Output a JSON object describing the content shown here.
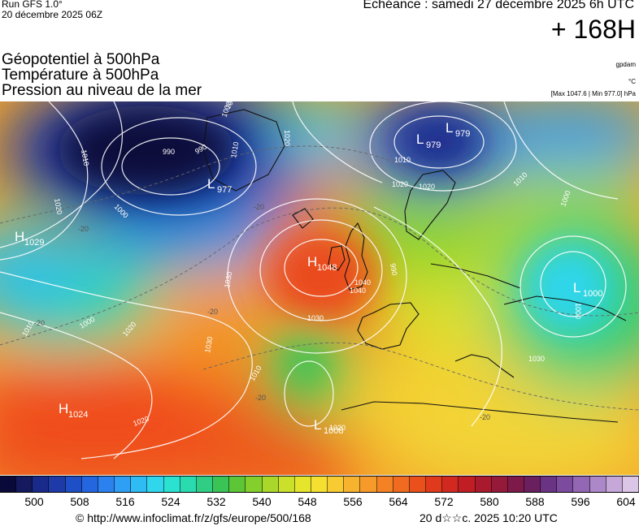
{
  "header": {
    "run_label": "Run GFS 1.0°",
    "run_date": "20 décembre 2025 06Z",
    "valid_time": "Échéance : samedi 27 décembre 2025 6h UTC",
    "lead_time": "+ 168H"
  },
  "parameters": [
    "Géopotentiel à 500hPa",
    "Température à 500hPa",
    "Pression au niveau de la mer"
  ],
  "units": {
    "geopotential": "gpdam",
    "temperature": "°C",
    "pressure_range": "[Max 1047.6 | Min 977.0] hPa"
  },
  "pressure_centers": [
    {
      "type": "H",
      "value": "1029",
      "name": "high-west-atlantic"
    },
    {
      "type": "H",
      "value": "1048",
      "name": "high-british-isles"
    },
    {
      "type": "H",
      "value": "1024",
      "name": "high-azores"
    },
    {
      "type": "L",
      "value": "977",
      "name": "low-greenland"
    },
    {
      "type": "L",
      "value": "979",
      "name": "low-norwegian-sea"
    },
    {
      "type": "L",
      "value": "979",
      "name": "low-barents-sea"
    },
    {
      "type": "L",
      "value": "1000",
      "name": "low-black-sea"
    },
    {
      "type": "L",
      "value": "1008",
      "name": "low-morocco"
    }
  ],
  "isobar_labels": [
    "1010",
    "1020",
    "990",
    "1000",
    "990",
    "1020",
    "1030",
    "1010",
    "1000",
    "1020",
    "1030",
    "1040",
    "1030",
    "1020",
    "1010",
    "1000",
    "1010",
    "1020",
    "1020",
    "1020",
    "1010",
    "1000",
    "990",
    "1000",
    "1010",
    "1030",
    "1000",
    "1040"
  ],
  "temperature_labels": [
    "-20",
    "-20",
    "-20",
    "-20",
    "-20",
    "-20"
  ],
  "colorbar": {
    "colors": [
      "#0a0a3a",
      "#151a5e",
      "#1a2a8a",
      "#1d3aa8",
      "#1f4fc6",
      "#2466df",
      "#2b82ef",
      "#2f9ff5",
      "#2fbcf5",
      "#2fd6ec",
      "#2be2d0",
      "#2adbb0",
      "#2fce84",
      "#3bc456",
      "#5cc637",
      "#84cf2c",
      "#aad82a",
      "#cbe02a",
      "#e5e52c",
      "#f5e031",
      "#f8cb32",
      "#f7b22e",
      "#f69a29",
      "#f48224",
      "#f06a1f",
      "#ea501c",
      "#e03a1c",
      "#d1281f",
      "#c01d24",
      "#aa1a2e",
      "#951a3a",
      "#7d1a4a",
      "#6a1f5f",
      "#6a3384",
      "#7d4b9e",
      "#9467b4",
      "#ad88c8",
      "#c6a8d8",
      "#dcc6e6"
    ],
    "labels": [
      "500",
      "508",
      "516",
      "524",
      "532",
      "540",
      "548",
      "556",
      "564",
      "572",
      "580",
      "588",
      "596",
      "604"
    ]
  },
  "footer": {
    "url": "© http://www.infoclimat.fr/z/gfs/europe/500/168",
    "date": "20 d☆☆c. 2025 10:20 UTC"
  }
}
